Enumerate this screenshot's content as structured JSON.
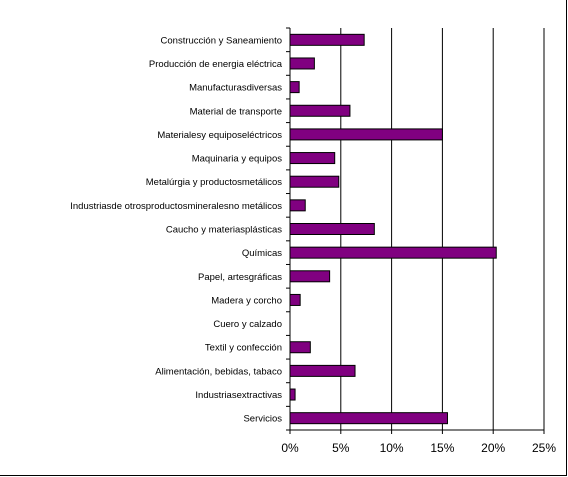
{
  "chart_data": {
    "type": "bar",
    "orientation": "horizontal",
    "categories": [
      "Construcción y Saneamiento",
      "Producción de energia eléctrica",
      "Manufacturasdiversas",
      "Material de transporte",
      "Materialesy equiposeléctricos",
      "Maquinaria y equipos",
      "Metalúrgia y productosmetálicos",
      "Industriasde otrosproductosmineralesno metálicos",
      "Caucho y materiasplásticas",
      "Químicas",
      "Papel, artesgráficas",
      "Madera y corcho",
      "Cuero y calzado",
      "Textil y confección",
      "Alimentación, bebidas, tabaco",
      "Industriasextractivas",
      "Servicios"
    ],
    "values": [
      7.3,
      2.4,
      0.9,
      5.9,
      15.0,
      4.4,
      4.8,
      1.5,
      8.3,
      20.3,
      3.9,
      1.0,
      0.0,
      2.0,
      6.4,
      0.5,
      15.5
    ],
    "xlim": [
      0,
      25
    ],
    "xticks": [
      "0%",
      "5%",
      "10%",
      "15%",
      "20%",
      "25%"
    ],
    "grid": true,
    "legend": "none",
    "bar_color": "#800080",
    "title": "",
    "xlabel": "",
    "ylabel": ""
  }
}
